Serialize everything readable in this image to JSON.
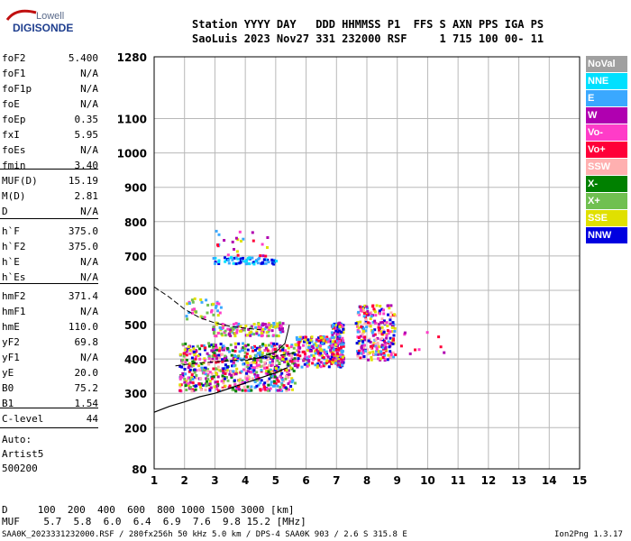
{
  "logo": {
    "top": "Lowell",
    "bottom": "DIGISONDE"
  },
  "header": {
    "line1": "Station YYYY DAY   DDD HHMMSS P1  FFS S AXN PPS IGA PS",
    "line2": "SaoLuis 2023 Nov27 331 232000 RSF     1 715 100 00- 11"
  },
  "params": [
    {
      "label": "foF2",
      "value": "5.400"
    },
    {
      "label": "foF1",
      "value": "N/A"
    },
    {
      "label": "foF1p",
      "value": "N/A"
    },
    {
      "label": "foE",
      "value": "N/A"
    },
    {
      "label": "foEp",
      "value": "0.35"
    },
    {
      "label": "fxI",
      "value": "5.95"
    },
    {
      "label": "foEs",
      "value": "N/A"
    },
    {
      "label": "fmin",
      "value": "3.40"
    },
    {
      "label": "MUF(D)",
      "value": "15.19"
    },
    {
      "label": "M(D)",
      "value": "2.81"
    },
    {
      "label": "D",
      "value": "N/A"
    },
    {
      "label": "h`F",
      "value": "375.0"
    },
    {
      "label": "h`F2",
      "value": "375.0"
    },
    {
      "label": "h`E",
      "value": "N/A"
    },
    {
      "label": "h`Es",
      "value": "N/A"
    },
    {
      "label": "hmF2",
      "value": "371.4"
    },
    {
      "label": "hmF1",
      "value": "N/A"
    },
    {
      "label": "hmE",
      "value": "110.0"
    },
    {
      "label": "yF2",
      "value": "69.8"
    },
    {
      "label": "yF1",
      "value": "N/A"
    },
    {
      "label": "yE",
      "value": "20.0"
    },
    {
      "label": "B0",
      "value": "75.2"
    },
    {
      "label": "B1",
      "value": "1.54"
    },
    {
      "label": "C-level",
      "value": "44"
    }
  ],
  "auto_lines": [
    "Auto:",
    "Artist5",
    "500200"
  ],
  "legend": [
    {
      "label": "NoVal",
      "color": "#a0a0a0"
    },
    {
      "label": "NNE",
      "color": "#00e0ff"
    },
    {
      "label": "E",
      "color": "#3aa8ff"
    },
    {
      "label": "W",
      "color": "#b000b0"
    },
    {
      "label": "Vo-",
      "color": "#ff3cc8"
    },
    {
      "label": "Vo+",
      "color": "#ff0038"
    },
    {
      "label": "SSW",
      "color": "#ffb0b0"
    },
    {
      "label": "X-",
      "color": "#008000"
    },
    {
      "label": "X+",
      "color": "#70c050"
    },
    {
      "label": "SSE",
      "color": "#e0e000"
    },
    {
      "label": "NNW",
      "color": "#0000e0"
    }
  ],
  "bottom": {
    "d_line": "D     100  200  400  600  800 1000 1500 3000 [km]",
    "muf_line": "MUF    5.7  5.8  6.0  6.4  6.9  7.6  9.8 15.2 [MHz]"
  },
  "footer": {
    "left": "SAA0K_2023331232000.RSF / 280fx256h 50 kHz 5.0 km / DPS-4 SAA0K 903 / 2.6 S 315.8 E",
    "right": "Ion2Png 1.3.17"
  },
  "chart_data": {
    "type": "scatter",
    "title": "",
    "xlabel": "",
    "ylabel": "",
    "xlim": [
      1,
      15
    ],
    "ylim": [
      80,
      1280
    ],
    "x_ticks": [
      "1",
      "2",
      "3",
      "4",
      "5",
      "6",
      "7",
      "8",
      "9",
      "10",
      "11",
      "12",
      "13",
      "14",
      "15"
    ],
    "y_ticks": [
      "80",
      "200",
      "300",
      "400",
      "500",
      "600",
      "700",
      "800",
      "900",
      "1000",
      "1100",
      "1280"
    ],
    "y_tick_values": [
      80,
      200,
      300,
      400,
      500,
      600,
      700,
      800,
      900,
      1000,
      1100,
      1280
    ],
    "echo_clusters": [
      {
        "f": [
          1.8,
          5.6
        ],
        "h": [
          310,
          450
        ],
        "n": 700,
        "colors": [
          "#b000b0",
          "#ff0038",
          "#0000e0",
          "#e0e000",
          "#ff3cc8",
          "#3aa8ff",
          "#008000",
          "#70c050",
          "#ffb0b0"
        ]
      },
      {
        "f": [
          5.6,
          6.8
        ],
        "h": [
          380,
          470
        ],
        "n": 180,
        "colors": [
          "#3aa8ff",
          "#b000b0",
          "#ff3cc8",
          "#ff0038",
          "#0000e0",
          "#e0e000"
        ]
      },
      {
        "f": [
          6.8,
          7.2
        ],
        "h": [
          380,
          510
        ],
        "n": 160,
        "colors": [
          "#3aa8ff",
          "#b000b0",
          "#ff3cc8",
          "#0000e0",
          "#e0e000",
          "#ff0038"
        ]
      },
      {
        "f": [
          7.6,
          8.9
        ],
        "h": [
          400,
          560
        ],
        "n": 260,
        "colors": [
          "#ff0038",
          "#b000b0",
          "#ff3cc8",
          "#3aa8ff",
          "#0000e0",
          "#ffb0b0",
          "#e0e000"
        ]
      },
      {
        "f": [
          2.9,
          5.2
        ],
        "h": [
          470,
          510
        ],
        "n": 140,
        "colors": [
          "#e0e000",
          "#70c050",
          "#ff3cc8",
          "#3aa8ff",
          "#b000b0"
        ]
      },
      {
        "f": [
          2.0,
          3.2
        ],
        "h": [
          520,
          580
        ],
        "n": 40,
        "colors": [
          "#3aa8ff",
          "#70c050",
          "#ff3cc8",
          "#e0e000"
        ]
      },
      {
        "f": [
          2.9,
          5.0
        ],
        "h": [
          680,
          700
        ],
        "n": 70,
        "colors": [
          "#3aa8ff",
          "#00e0ff",
          "#0000e0"
        ]
      },
      {
        "f": [
          3.0,
          4.8
        ],
        "h": [
          700,
          780
        ],
        "n": 24,
        "colors": [
          "#ff3cc8",
          "#e0e000",
          "#3aa8ff",
          "#b000b0",
          "#ff0038"
        ]
      },
      {
        "f": [
          9.0,
          10.5
        ],
        "h": [
          410,
          500
        ],
        "n": 10,
        "colors": [
          "#ff0038",
          "#ff3cc8",
          "#b000b0"
        ]
      }
    ],
    "profile_curve": [
      [
        1.0,
        245
      ],
      [
        1.5,
        262
      ],
      [
        2.0,
        275
      ],
      [
        2.5,
        290
      ],
      [
        3.0,
        300
      ],
      [
        3.5,
        315
      ],
      [
        4.0,
        330
      ],
      [
        4.5,
        345
      ],
      [
        5.0,
        360
      ],
      [
        5.3,
        372
      ],
      [
        5.4,
        375
      ]
    ],
    "trace_dashed_upper": [
      [
        1.0,
        610
      ],
      [
        1.5,
        580
      ],
      [
        2.0,
        545
      ],
      [
        2.5,
        520
      ],
      [
        3.0,
        505
      ],
      [
        3.5,
        495
      ],
      [
        4.0,
        490
      ],
      [
        4.5,
        485
      ]
    ],
    "trace_dashed_lower": [
      [
        1.7,
        380
      ],
      [
        2.2,
        386
      ],
      [
        3.0,
        392
      ],
      [
        4.0,
        398
      ],
      [
        5.0,
        408
      ],
      [
        5.6,
        418
      ]
    ],
    "trace_solid_f2": [
      [
        4.0,
        395
      ],
      [
        4.5,
        405
      ],
      [
        5.0,
        420
      ],
      [
        5.3,
        445
      ],
      [
        5.4,
        480
      ],
      [
        5.45,
        500
      ]
    ]
  }
}
